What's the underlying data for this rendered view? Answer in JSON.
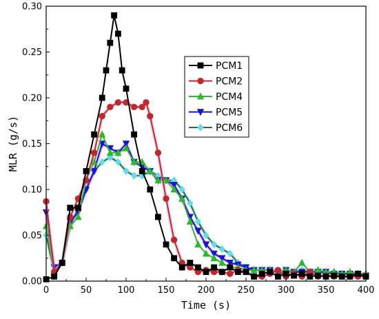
{
  "chart_data": {
    "type": "line",
    "title": "",
    "xlabel": "Time (s)",
    "ylabel": "MLR (g/s)",
    "xlim": [
      0,
      400
    ],
    "ylim": [
      0,
      0.3
    ],
    "x_ticks": [
      0,
      50,
      100,
      150,
      200,
      250,
      300,
      350,
      400
    ],
    "y_ticks": [
      0.0,
      0.05,
      0.1,
      0.15,
      0.2,
      0.25,
      0.3
    ],
    "x_tick_labels": [
      "0",
      "50",
      "100",
      "150",
      "200",
      "250",
      "300",
      "350",
      "400"
    ],
    "y_tick_labels": [
      "0.00",
      "0.05",
      "0.10",
      "0.15",
      "0.20",
      "0.25",
      "0.30"
    ],
    "grid": false,
    "legend_position": "center-right",
    "series": [
      {
        "name": "PCM1",
        "color": "#000000",
        "marker": "square",
        "x": [
          0,
          10,
          20,
          30,
          40,
          50,
          60,
          70,
          75,
          80,
          85,
          90,
          95,
          100,
          110,
          120,
          130,
          140,
          150,
          160,
          170,
          180,
          190,
          200,
          210,
          220,
          230,
          240,
          250,
          260,
          270,
          280,
          290,
          300,
          310,
          320,
          330,
          340,
          350,
          360,
          370,
          380,
          390,
          400
        ],
        "y": [
          0.002,
          0.005,
          0.02,
          0.08,
          0.08,
          0.12,
          0.16,
          0.2,
          0.23,
          0.26,
          0.29,
          0.27,
          0.23,
          0.21,
          0.16,
          0.12,
          0.1,
          0.07,
          0.04,
          0.025,
          0.015,
          0.02,
          0.015,
          0.01,
          0.015,
          0.01,
          0.015,
          0.01,
          0.01,
          0.005,
          0.008,
          0.01,
          0.005,
          0.008,
          0.006,
          0.008,
          0.005,
          0.006,
          0.005,
          0.006,
          0.005,
          0.005,
          0.008,
          0.005
        ]
      },
      {
        "name": "PCM2",
        "color": "#c0282d",
        "marker": "circle",
        "x": [
          0,
          10,
          20,
          30,
          40,
          50,
          60,
          70,
          80,
          90,
          100,
          110,
          120,
          125,
          130,
          140,
          150,
          160,
          170,
          180,
          190,
          200,
          210,
          220,
          230,
          240,
          250,
          260,
          270,
          280,
          290,
          300,
          310,
          320,
          330,
          340,
          350,
          360,
          370,
          380,
          390,
          400
        ],
        "y": [
          0.087,
          0.01,
          0.02,
          0.07,
          0.09,
          0.11,
          0.14,
          0.18,
          0.19,
          0.195,
          0.195,
          0.19,
          0.19,
          0.195,
          0.18,
          0.14,
          0.09,
          0.045,
          0.02,
          0.015,
          0.01,
          0.012,
          0.01,
          0.01,
          0.008,
          0.012,
          0.01,
          0.005,
          0.005,
          0.008,
          0.012,
          0.005,
          0.008,
          0.005,
          0.01,
          0.005,
          0.006,
          0.005,
          0.005,
          0.005,
          0.005,
          0.005
        ]
      },
      {
        "name": "PCM4",
        "color": "#2db82d",
        "marker": "triangle-up",
        "x": [
          0,
          10,
          20,
          30,
          40,
          50,
          60,
          70,
          80,
          90,
          100,
          110,
          120,
          130,
          140,
          150,
          160,
          170,
          180,
          190,
          200,
          210,
          220,
          230,
          240,
          250,
          260,
          270,
          280,
          290,
          300,
          310,
          320,
          330,
          340,
          350,
          360,
          370,
          380,
          390,
          400
        ],
        "y": [
          0.06,
          0.01,
          0.02,
          0.06,
          0.07,
          0.11,
          0.13,
          0.16,
          0.14,
          0.14,
          0.145,
          0.13,
          0.13,
          0.12,
          0.11,
          0.11,
          0.1,
          0.09,
          0.065,
          0.04,
          0.03,
          0.025,
          0.02,
          0.015,
          0.015,
          0.012,
          0.012,
          0.012,
          0.012,
          0.01,
          0.012,
          0.01,
          0.02,
          0.01,
          0.012,
          0.01,
          0.01,
          0.008,
          0.01,
          0.008,
          0.008
        ]
      },
      {
        "name": "PCM5",
        "color": "#1515d6",
        "marker": "triangle-down",
        "x": [
          0,
          10,
          20,
          30,
          40,
          50,
          60,
          70,
          80,
          90,
          100,
          110,
          120,
          130,
          140,
          150,
          160,
          170,
          180,
          190,
          200,
          210,
          220,
          230,
          240,
          250,
          260,
          270,
          280,
          290,
          300,
          310,
          320,
          330,
          340,
          350,
          360,
          370,
          380,
          390,
          400
        ],
        "y": [
          0.075,
          0.015,
          0.02,
          0.065,
          0.075,
          0.1,
          0.12,
          0.15,
          0.145,
          0.14,
          0.15,
          0.13,
          0.125,
          0.12,
          0.11,
          0.11,
          0.105,
          0.09,
          0.07,
          0.055,
          0.04,
          0.03,
          0.025,
          0.02,
          0.018,
          0.015,
          0.012,
          0.012,
          0.012,
          0.01,
          0.012,
          0.01,
          0.01,
          0.01,
          0.01,
          0.01,
          0.008,
          0.008,
          0.008,
          0.008,
          0.006
        ]
      },
      {
        "name": "PCM6",
        "color": "#2e6b2e",
        "marker": "diamond",
        "x": [
          0,
          10,
          20,
          30,
          40,
          50,
          60,
          70,
          80,
          90,
          100,
          110,
          120,
          130,
          140,
          150,
          160,
          170,
          180,
          190,
          200,
          210,
          220,
          230,
          240,
          250,
          260,
          270,
          280,
          290,
          300,
          310,
          320,
          330,
          340,
          350,
          360,
          370,
          380,
          390,
          400
        ],
        "y": [
          0.05,
          0.01,
          0.02,
          0.06,
          0.08,
          0.1,
          0.12,
          0.13,
          0.135,
          0.13,
          0.12,
          0.115,
          0.115,
          0.12,
          0.115,
          0.11,
          0.11,
          0.1,
          0.085,
          0.065,
          0.05,
          0.04,
          0.035,
          0.03,
          0.02,
          0.015,
          0.012,
          0.012,
          0.012,
          0.01,
          0.01,
          0.01,
          0.012,
          0.01,
          0.01,
          0.008,
          0.01,
          0.008,
          0.008,
          0.008,
          0.006
        ]
      }
    ]
  }
}
